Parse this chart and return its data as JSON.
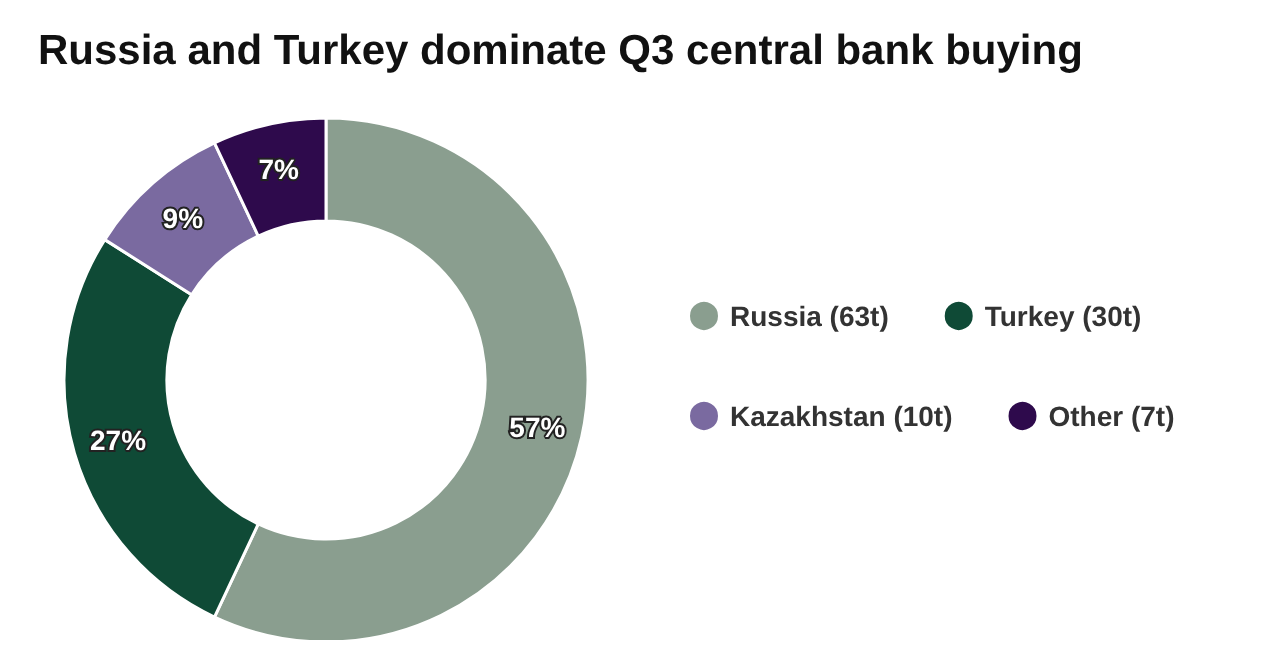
{
  "chart_data": {
    "type": "donut",
    "title": "Russia and Turkey dominate Q3 central bank buying",
    "categories": [
      "Russia (63t)",
      "Turkey (30t)",
      "Kazakhstan (10t)",
      "Other (7t)"
    ],
    "values": [
      57,
      27,
      9,
      7
    ],
    "value_labels": [
      "57%",
      "27%",
      "9%",
      "7%"
    ],
    "colors": [
      "#8a9e8f",
      "#0f4a36",
      "#7a6aa0",
      "#2e0a4c"
    ],
    "legend": "right"
  }
}
